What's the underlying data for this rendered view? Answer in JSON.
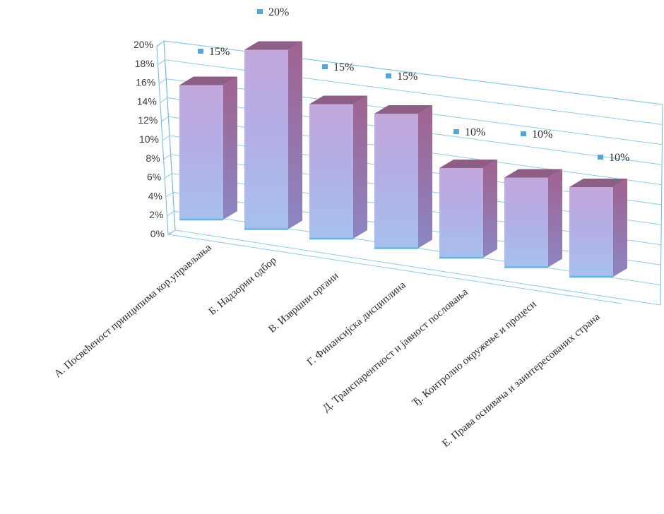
{
  "chart_data": {
    "type": "bar",
    "categories": [
      "А. Посвећеност принципима кор.управљања",
      "Б. Надзорни одбор",
      "В. Извршни органи",
      "Г. Финансијска дисциплина",
      "Д. Транспарентност и јавност пословања",
      "Ђ. Контролно окружење и процеси",
      "Е. Права оснивача и заинтересованих страна"
    ],
    "values": [
      15,
      20,
      15,
      15,
      10,
      10,
      10
    ],
    "data_labels": [
      "15%",
      "20%",
      "15%",
      "15%",
      "10%",
      "10%",
      "10%"
    ],
    "y_ticks": [
      "0%",
      "2%",
      "4%",
      "6%",
      "8%",
      "10%",
      "12%",
      "14%",
      "16%",
      "18%",
      "20%"
    ],
    "ylim": [
      0,
      20
    ],
    "grid": true,
    "legend": "none",
    "style": "3d-column",
    "colors": {
      "bar_front": "#b7a9e6",
      "bar_side": "#a36f9e",
      "bar_top": "#8e5f86",
      "grid": "#8fcbe6",
      "wall": "#6ab8e2",
      "marker": "#4fa8d8",
      "bar_base": "#62b6e4"
    }
  }
}
